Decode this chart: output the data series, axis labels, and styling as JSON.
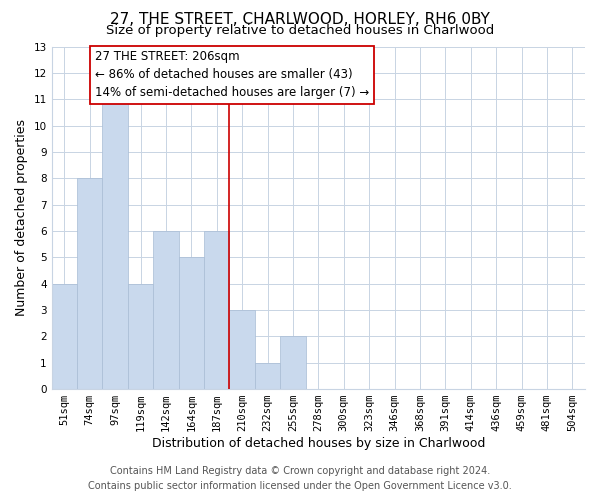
{
  "title": "27, THE STREET, CHARLWOOD, HORLEY, RH6 0BY",
  "subtitle": "Size of property relative to detached houses in Charlwood",
  "xlabel": "Distribution of detached houses by size in Charlwood",
  "ylabel": "Number of detached properties",
  "bin_labels": [
    "51sqm",
    "74sqm",
    "97sqm",
    "119sqm",
    "142sqm",
    "164sqm",
    "187sqm",
    "210sqm",
    "232sqm",
    "255sqm",
    "278sqm",
    "300sqm",
    "323sqm",
    "346sqm",
    "368sqm",
    "391sqm",
    "414sqm",
    "436sqm",
    "459sqm",
    "481sqm",
    "504sqm"
  ],
  "bar_values": [
    4,
    8,
    11,
    4,
    6,
    5,
    6,
    3,
    1,
    2,
    0,
    0,
    0,
    0,
    0,
    0,
    0,
    0,
    0,
    0,
    0
  ],
  "bar_color": "#c9d9ed",
  "bar_edge_color": "#a8bcd4",
  "vline_x_index": 7,
  "vline_color": "#cc0000",
  "annotation_line1": "27 THE STREET: 206sqm",
  "annotation_line2": "← 86% of detached houses are smaller (43)",
  "annotation_line3": "14% of semi-detached houses are larger (7) →",
  "ylim": [
    0,
    13
  ],
  "yticks": [
    0,
    1,
    2,
    3,
    4,
    5,
    6,
    7,
    8,
    9,
    10,
    11,
    12,
    13
  ],
  "footer_line1": "Contains HM Land Registry data © Crown copyright and database right 2024.",
  "footer_line2": "Contains public sector information licensed under the Open Government Licence v3.0.",
  "grid_color": "#c8d4e3",
  "background_color": "#ffffff",
  "title_fontsize": 11,
  "subtitle_fontsize": 9.5,
  "xlabel_fontsize": 9,
  "ylabel_fontsize": 9,
  "tick_fontsize": 7.5,
  "annotation_fontsize": 8.5,
  "footer_fontsize": 7
}
